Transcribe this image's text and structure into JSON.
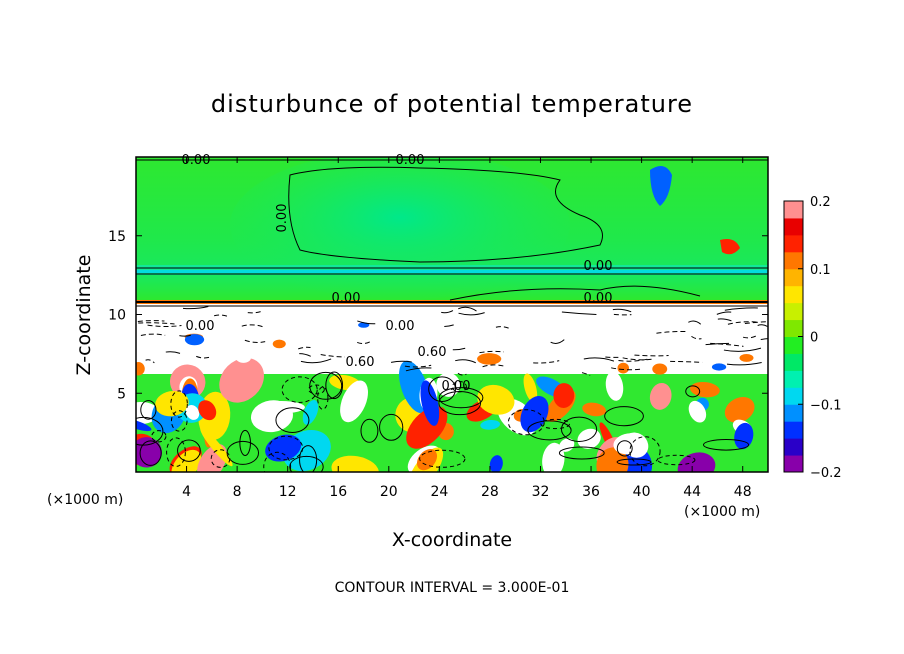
{
  "chart_data": {
    "type": "heatmap",
    "title": "disturbunce of potential temperature",
    "xlabel": "X-coordinate",
    "ylabel": "Z-coordinate",
    "x_unit": "(×1000 m)",
    "y_unit": "(×1000 m)",
    "xlim": [
      0,
      50
    ],
    "ylim": [
      0,
      20
    ],
    "x_ticks": [
      4,
      8,
      12,
      16,
      20,
      24,
      28,
      32,
      36,
      40,
      44,
      48
    ],
    "y_ticks": [
      5,
      10,
      15
    ],
    "colorbar": {
      "min": -0.2,
      "max": 0.2,
      "tick_values": [
        0.2,
        0.1,
        0,
        -0.1,
        -0.2
      ],
      "tick_labels": [
        "0.2",
        "0.1",
        "0",
        "−0.1",
        "−0.2"
      ],
      "colors": [
        "#8800aa",
        "#2a00c8",
        "#0030ff",
        "#0090ff",
        "#00d8f0",
        "#00f0b0",
        "#00e866",
        "#22ee22",
        "#7fe800",
        "#c8f000",
        "#ffe600",
        "#ffb400",
        "#ff7700",
        "#ff2200",
        "#e80000",
        "#ff9090"
      ]
    },
    "contour_labels": [
      "0.00",
      "0.00",
      "0.00",
      "0.00",
      "0.00",
      "0.00",
      "0.00",
      "0.00",
      "0.60",
      "0.60",
      "0.00"
    ],
    "contour_interval_text": "CONTOUR INTERVAL = 3.000E-01",
    "grid": false,
    "legend": "colorbar-right"
  }
}
